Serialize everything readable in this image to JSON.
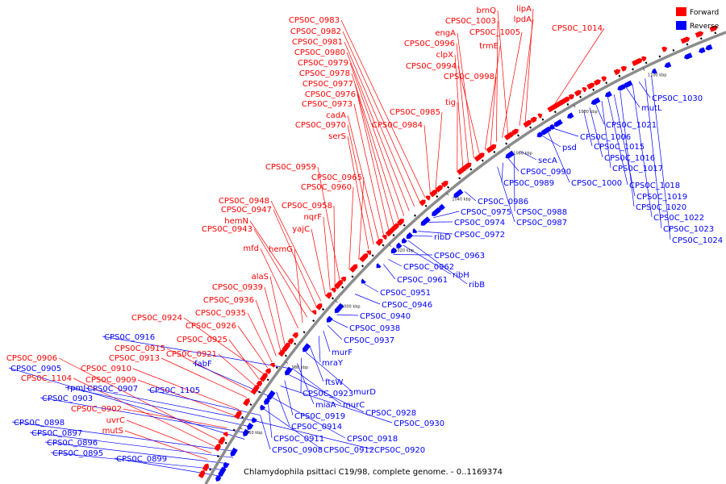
{
  "colors": {
    "forward": "#ff0000",
    "reverse": "#0000ff",
    "backbone": "#8c8c8c"
  },
  "legend": [
    {
      "label": "Forward",
      "color": "#ff0000"
    },
    {
      "label": "Reverse",
      "color": "#0000ff"
    }
  ],
  "caption": "Chlamydophila psittaci C19/98, complete genome. - 0..1169374",
  "ticks": [
    "960 kbp",
    "980 kbp",
    "1000 kbp",
    "1020 kbp",
    "1040 kbp",
    "1060 kbp",
    "1080 kbp",
    "1100 kbp"
  ],
  "forward_labels": [
    "CPS0C_0983",
    "CPS0C_0982",
    "CPS0C_0981",
    "CPS0C_0980",
    "CPS0C_0979",
    "CPS0C_0978",
    "CPS0C_0977",
    "CPS0C_0976",
    "CPS0C_0973",
    "cadA",
    "CPS0C_0970",
    "serS",
    "CPS0C_0985",
    "CPS0C_0984",
    "tig",
    "brnQ",
    "CPS0C_1003",
    "engA",
    "CPS0C_0996",
    "clpX",
    "CPS0C_0994",
    "lipA",
    "lpdA",
    "CPS0C_1005",
    "trmE",
    "CPS0C_0998",
    "CPS0C_1014",
    "CPS0C_0959",
    "CPS0C_0965",
    "CPS0C_0960",
    "CPS0C_0948",
    "CPS0C_0947",
    "hemN",
    "CPS0C_0943",
    "CPS0C_0958",
    "nqrF",
    "yajC",
    "mfd",
    "hemG",
    "alaS",
    "CPS0C_0939",
    "CPS0C_0936",
    "CPS0C_0935",
    "CPS0C_0924",
    "CPS0C_0926",
    "CPS0C_0925",
    "CPS0C_0915",
    "CPS0C_0913",
    "CPS0C_0921",
    "CPS0C_0906",
    "CPS0C_0910",
    "CPS0C_1104",
    "CPS0C_0909",
    "CPS0C_0902",
    "uvrC",
    "mutS"
  ],
  "reverse_labels": [
    "CPS0C_1030",
    "mutL",
    "CPS0C_1021",
    "CPS0C_1006",
    "CPS0C_1015",
    "CPS0C_1016",
    "CPS0C_1017",
    "CPS0C_1018",
    "CPS0C_1019",
    "CPS0C_1020",
    "CPS0C_1022",
    "CPS0C_1023",
    "CPS0C_1024",
    "psd",
    "secA",
    "CPS0C_1000",
    "CPS0C_0990",
    "CPS0C_0989",
    "CPS0C_0986",
    "CPS0C_0988",
    "CPS0C_0975",
    "CPS0C_0987",
    "CPS0C_0974",
    "CPS0C_0972",
    "ribD",
    "CPS0C_0963",
    "CPS0C_0962",
    "CPS0C_0961",
    "ribH",
    "ribB",
    "CPS0C_0951",
    "CPS0C_0946",
    "CPS0C_0940",
    "CPS0C_0938",
    "CPS0C_0937",
    "murF",
    "mraY",
    "ftsW",
    "CPS0C_0923",
    "murD",
    "miaA",
    "murC",
    "CPS0C_0928",
    "CPS0C_0919",
    "CPS0C_0930",
    "CPS0C_0914",
    "CPS0C_0911",
    "CPS0C_0918",
    "CPS0C_0908",
    "CPS0C_0912",
    "CPS0C_0920",
    "CPS0C_0916",
    "CPS0C_0905",
    "fabF",
    "rpmJ",
    "CPS0C_0907",
    "CPS0C_1105",
    "CPS0C_0903",
    "CPS0C_0898",
    "CPS0C_0897",
    "CPS0C_0896",
    "CPS0C_0895",
    "CPS0C_0899"
  ]
}
